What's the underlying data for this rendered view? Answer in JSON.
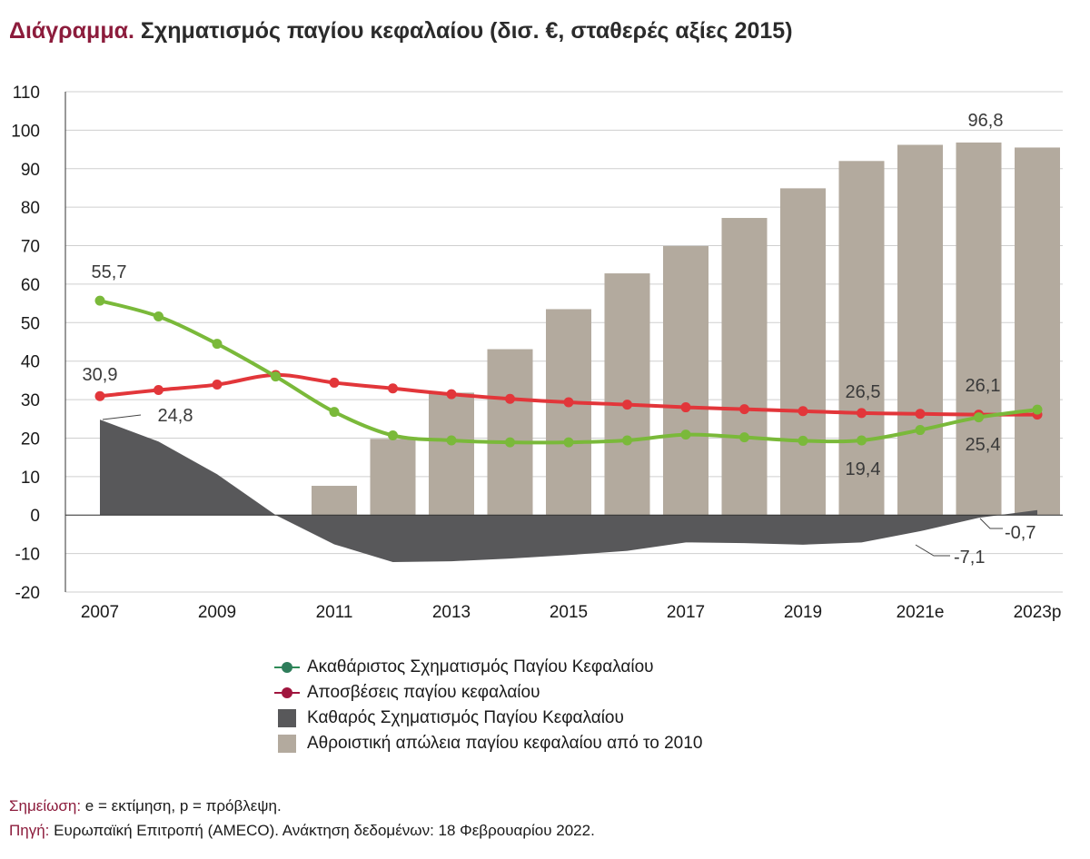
{
  "title": {
    "lead": "Διάγραμμα.",
    "text": "Σχηματισμός παγίου κεφαλαίου (δισ. €, σταθερές αξίες 2015)"
  },
  "chart_data": {
    "type": "bar+line+area",
    "years": [
      "2007",
      "2008",
      "2009",
      "2010",
      "2011",
      "2012",
      "2013",
      "2014",
      "2015",
      "2016",
      "2017",
      "2018",
      "2019",
      "2020",
      "2021e",
      "2022",
      "2023p"
    ],
    "x_tick_labels": [
      "2007",
      "2009",
      "2011",
      "2013",
      "2015",
      "2017",
      "2019",
      "2021e",
      "2023p"
    ],
    "ylim": [
      -20,
      110
    ],
    "y_ticks": [
      110,
      100,
      90,
      80,
      70,
      60,
      50,
      40,
      30,
      20,
      10,
      0,
      -10,
      -20
    ],
    "series": [
      {
        "name": "Ακαθάριστος Σχηματισμός Παγίου Κεφαλαίου",
        "type": "line",
        "color": "#7ab93a",
        "values": [
          55.7,
          51.6,
          44.5,
          36.0,
          26.8,
          20.7,
          19.4,
          18.9,
          18.9,
          19.4,
          20.9,
          20.2,
          19.3,
          19.4,
          22.1,
          25.4,
          27.4
        ]
      },
      {
        "name": "Αποσβέσεις παγίου κεφαλαίου",
        "type": "line",
        "color": "#e2363a",
        "values": [
          30.9,
          32.5,
          33.9,
          36.4,
          34.4,
          32.9,
          31.4,
          30.2,
          29.3,
          28.7,
          28.0,
          27.5,
          27.0,
          26.5,
          26.3,
          26.1,
          26.1
        ]
      },
      {
        "name": "Καθαρός Σχηματισμός Παγίου Κεφαλαίου",
        "type": "area",
        "color": "#58585a",
        "values": [
          24.8,
          19.1,
          10.6,
          0.0,
          -7.6,
          -12.2,
          -12.0,
          -11.3,
          -10.4,
          -9.3,
          -7.1,
          -7.3,
          -7.7,
          -7.1,
          -4.2,
          -0.7,
          1.3
        ]
      },
      {
        "name": "Αθροιστική απώλεια παγίου κεφαλαίου από το 2010",
        "type": "bar",
        "color": "#b3aa9e",
        "values": [
          null,
          null,
          null,
          null,
          7.6,
          19.8,
          31.8,
          43.1,
          53.5,
          62.8,
          69.9,
          77.2,
          84.9,
          92.0,
          96.2,
          96.8,
          95.5
        ]
      }
    ],
    "annotations": [
      "55,7",
      "30,9",
      "24,8",
      "26,5",
      "19,4",
      "96,8",
      "26,1",
      "25,4",
      "-0,7",
      "-7,1"
    ],
    "legend_position": "bottom"
  },
  "legend": [
    {
      "label": "Ακαθάριστος Σχηματισμός Παγίου Κεφαλαίου",
      "line_color": "#2e8b57",
      "dot_color": "#2e7d5b"
    },
    {
      "label": "Αποσβέσεις παγίου κεφαλαίου",
      "line_color": "#a0153e",
      "dot_color": "#a0153e"
    },
    {
      "label": "Καθαρός Σχηματισμός Παγίου Κεφαλαίου",
      "box_color": "#58585a"
    },
    {
      "label": "Αθροιστική απώλεια παγίου κεφαλαίου από το 2010",
      "box_color": "#b3aa9e"
    }
  ],
  "notes": {
    "note_key": "Σημείωση:",
    "note_text": " e = εκτίμηση, p = πρόβλεψη.",
    "source_key": "Πηγή:",
    "source_text": " Ευρωπαϊκή Επιτροπή (AMECO). Ανάκτηση δεδομένων: 18 Φεβρουαρίου 2022."
  }
}
